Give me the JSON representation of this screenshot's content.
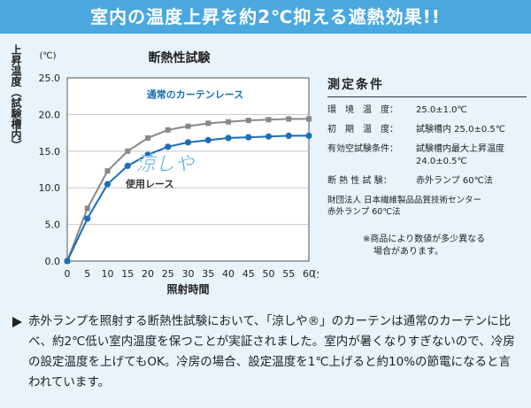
{
  "banner": {
    "title": "室内の温度上昇を約2℃抑える遮熱効果!!"
  },
  "chart_data": {
    "type": "line",
    "title": "断熱性試験",
    "xlabel": "照射時間",
    "ylabel": "上昇温度（試験槽内）",
    "y_unit": "(℃)",
    "x_unit": "(分)",
    "x": [
      0,
      5,
      10,
      15,
      20,
      25,
      30,
      35,
      40,
      45,
      50,
      55,
      60
    ],
    "xlim": [
      0,
      60
    ],
    "ylim": [
      0,
      25
    ],
    "yticks": [
      "0.0",
      "5.0",
      "10.0",
      "15.0",
      "20.0",
      "25.0"
    ],
    "xticks": [
      "0",
      "5",
      "10",
      "15",
      "20",
      "25",
      "30",
      "35",
      "40",
      "45",
      "50",
      "55",
      "60"
    ],
    "grid": true,
    "series": [
      {
        "name": "通常のカーテンレース",
        "color": "#888888",
        "values": [
          0,
          7.2,
          12.3,
          15.0,
          16.8,
          17.9,
          18.4,
          18.8,
          19.0,
          19.2,
          19.3,
          19.4,
          19.4
        ]
      },
      {
        "name": "使用レース",
        "color": "#1a6fb8",
        "values": [
          0,
          5.8,
          10.5,
          13.0,
          14.5,
          15.6,
          16.2,
          16.5,
          16.8,
          16.9,
          17.0,
          17.1,
          17.1
        ]
      }
    ],
    "brand_logo": "涼しや"
  },
  "conditions": {
    "title": "測定条件",
    "rows": [
      {
        "key": "環　境　温　度：",
        "value": "25.0±1.0℃"
      },
      {
        "key": "初　期　温　度：",
        "value": "試験槽内 25.0±0.5℃"
      },
      {
        "key": "有効空試験条件：",
        "value": "試験槽内最大上昇温度 24.0±0.5℃"
      },
      {
        "key": "断 熱 性 試 験：",
        "value": "赤外ランプ 60℃法"
      }
    ],
    "org_line1": "財団法人 日本繊維製品品質技術センター",
    "org_line2": "赤外ランプ 60℃法"
  },
  "note": {
    "line1": "※商品により数値が多少異なる",
    "line2": "場合があります。"
  },
  "footer": {
    "text": "赤外ランプを照射する断熱性試験において、「涼しや®」のカーテンは通常のカーテンに比べ、約2℃低い室内温度を保つことが実証されました。室内が暑くなりすぎないので、冷房の設定温度を上げてもOK。冷房の場合、設定温度を1℃上げると約10%の節電になると言われています。"
  }
}
